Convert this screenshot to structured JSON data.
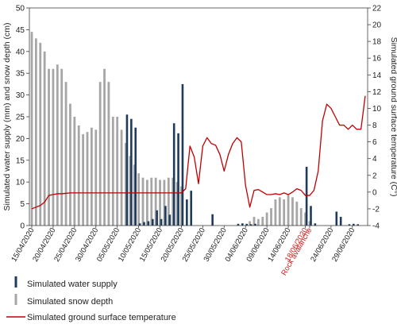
{
  "chart_data": {
    "type": "bar+line",
    "y_left_label": "Simulated water supply (mm) and snow depth (cm)",
    "y_right_label": "Simulated ground surface temperature (C°)",
    "y_left_range": [
      0,
      50
    ],
    "y_left_ticks": [
      "0",
      "5",
      "10",
      "15",
      "20",
      "25",
      "30",
      "35",
      "40",
      "45",
      "50"
    ],
    "y_right_range": [
      -4,
      22
    ],
    "y_right_ticks": [
      "-4",
      "-2",
      "0",
      "2",
      "4",
      "6",
      "8",
      "10",
      "12",
      "14",
      "16",
      "18",
      "20",
      "22"
    ],
    "x_start_day": 0,
    "x_end_day": 78,
    "x_tick_labels": [
      {
        "day": 0,
        "label": "15/04/2020"
      },
      {
        "day": 5,
        "label": "20/04/2020"
      },
      {
        "day": 10,
        "label": "25/04/2020"
      },
      {
        "day": 15,
        "label": "30/04/2020"
      },
      {
        "day": 20,
        "label": "05/05/2020"
      },
      {
        "day": 25,
        "label": "10/05/2020"
      },
      {
        "day": 30,
        "label": "15/05/2020"
      },
      {
        "day": 35,
        "label": "20/05/2020"
      },
      {
        "day": 40,
        "label": "25/05/2020"
      },
      {
        "day": 45,
        "label": "30/05/2020"
      },
      {
        "day": 50,
        "label": "04/06/2020"
      },
      {
        "day": 55,
        "label": "09/06/2020"
      },
      {
        "day": 60,
        "label": "14/06/2020"
      },
      {
        "day": 64,
        "label": "18/06/2020",
        "color": "#cc2222"
      },
      {
        "day": 65,
        "label": "Rock avalanche",
        "color": "#cc2222"
      },
      {
        "day": 70,
        "label": "24/06/2020"
      },
      {
        "day": 75,
        "label": "29/06/2020"
      }
    ],
    "series": [
      {
        "name": "Simulated snow depth",
        "kind": "bar",
        "axis": "left",
        "color": "#a6a6a6",
        "x": [
          0,
          1,
          2,
          3,
          4,
          5,
          6,
          7,
          8,
          9,
          10,
          11,
          12,
          13,
          14,
          15,
          16,
          17,
          18,
          19,
          20,
          21,
          22,
          23,
          24,
          25,
          26,
          27,
          28,
          29,
          30,
          31,
          32,
          33,
          34,
          35,
          36,
          37,
          38,
          39,
          40,
          41,
          42,
          43,
          44,
          45,
          46,
          47,
          48,
          49,
          50,
          51,
          52,
          53,
          54,
          55,
          56,
          57,
          58,
          59,
          60,
          61,
          62,
          63,
          64,
          65,
          66,
          67,
          68,
          69,
          70,
          71,
          72,
          73,
          74,
          75,
          76,
          77,
          78
        ],
        "values": [
          44.5,
          43,
          42,
          40,
          36,
          36,
          37,
          36,
          33,
          28,
          25,
          23,
          21,
          21.5,
          22.5,
          22,
          33,
          36,
          33,
          25,
          25,
          22,
          19,
          16,
          14,
          12,
          11,
          10.5,
          11,
          11,
          10.5,
          10.5,
          11,
          11,
          10,
          9,
          0,
          0,
          0,
          0,
          0,
          0,
          0,
          0,
          0,
          0,
          0,
          0,
          0,
          0,
          0,
          1,
          2,
          1.5,
          2,
          3,
          4,
          6,
          6.5,
          6,
          7,
          6.5,
          5.5,
          4,
          3,
          1,
          0,
          0,
          0,
          0,
          0,
          0,
          0,
          0,
          0,
          0,
          0,
          0,
          0
        ]
      },
      {
        "name": "Simulated water supply",
        "kind": "bar",
        "axis": "left",
        "color": "#1f3b5c",
        "x": [
          22,
          23,
          24,
          25,
          26,
          27,
          28,
          29,
          30,
          31,
          32,
          33,
          34,
          35,
          36,
          37,
          42,
          48,
          49,
          50,
          51,
          52,
          64,
          65,
          66,
          71,
          72,
          74,
          75,
          76
        ],
        "values": [
          25.5,
          24.5,
          22.5,
          0.5,
          0.8,
          1,
          1.5,
          3.5,
          1.5,
          4.5,
          2.5,
          23.5,
          21.2,
          32.5,
          6,
          8,
          2.6,
          0.4,
          0.5,
          0.4,
          0.3,
          0.4,
          13.5,
          4.5,
          0.5,
          3.2,
          2,
          0.3,
          0.4,
          0.3
        ]
      },
      {
        "name": "Simulated ground surface temperature",
        "kind": "line",
        "axis": "right",
        "color": "#c00000",
        "x": [
          0,
          1,
          2,
          3,
          4,
          5,
          6,
          7,
          8,
          9,
          10,
          11,
          12,
          13,
          14,
          15,
          16,
          17,
          18,
          19,
          20,
          21,
          22,
          23,
          24,
          25,
          26,
          27,
          28,
          29,
          30,
          31,
          32,
          33,
          34,
          35,
          36,
          37,
          38,
          39,
          40,
          41,
          42,
          43,
          44,
          45,
          46,
          47,
          48,
          49,
          50,
          51,
          52,
          53,
          54,
          55,
          56,
          57,
          58,
          59,
          60,
          61,
          62,
          63,
          64,
          65,
          66,
          67,
          68,
          69,
          70,
          71,
          72,
          73,
          74,
          75,
          76,
          77,
          78
        ],
        "values": [
          -2,
          -1.8,
          -1.6,
          -1.2,
          -0.4,
          -0.3,
          -0.2,
          -0.2,
          -0.15,
          -0.1,
          -0.1,
          -0.1,
          -0.1,
          -0.1,
          -0.1,
          -0.1,
          -0.1,
          -0.1,
          -0.1,
          -0.1,
          -0.1,
          -0.1,
          -0.1,
          -0.1,
          -0.1,
          -0.1,
          -0.1,
          -0.1,
          -0.1,
          -0.1,
          -0.1,
          -0.1,
          -0.1,
          -0.1,
          -0.1,
          -0.1,
          0.4,
          5.5,
          4.2,
          1,
          5.5,
          6.5,
          5.8,
          5.6,
          4.5,
          2.5,
          4.5,
          5.8,
          6.5,
          6,
          0.8,
          -1.8,
          0.2,
          0.3,
          0,
          -0.3,
          -0.3,
          -0.2,
          -0.3,
          -0.1,
          -0.3,
          0,
          0.4,
          0.2,
          -0.4,
          -0.4,
          0.2,
          2.5,
          8.5,
          10.5,
          10,
          9,
          8,
          8,
          7.5,
          8,
          7.5,
          7.5,
          11.5
        ]
      }
    ],
    "legend_placement": "bottom-left",
    "grid": false
  }
}
